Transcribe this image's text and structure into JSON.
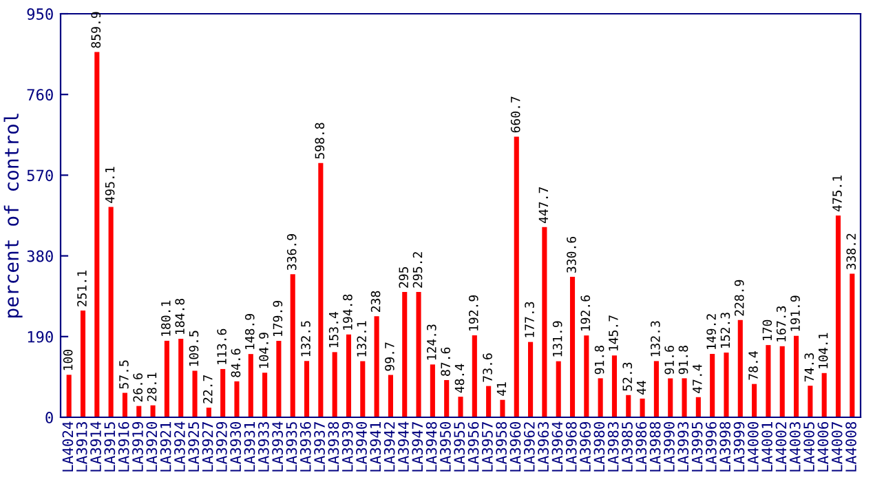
{
  "chart_data": {
    "type": "bar",
    "ylabel": "percent of control",
    "categories": [
      "LA4024",
      "LA3913",
      "LA3914",
      "LA3915",
      "LA3916",
      "LA3919",
      "LA3920",
      "LA3921",
      "LA3924",
      "LA3925",
      "LA3927",
      "LA3929",
      "LA3930",
      "LA3931",
      "LA3933",
      "LA3934",
      "LA3935",
      "LA3936",
      "LA3937",
      "LA3938",
      "LA3939",
      "LA3940",
      "LA3941",
      "LA3942",
      "LA3944",
      "LA3947",
      "LA3948",
      "LA3950",
      "LA3955",
      "LA3956",
      "LA3957",
      "LA3958",
      "LA3960",
      "LA3962",
      "LA3963",
      "LA3964",
      "LA3968",
      "LA3969",
      "LA3980",
      "LA3983",
      "LA3985",
      "LA3986",
      "LA3988",
      "LA3990",
      "LA3993",
      "LA3995",
      "LA3996",
      "LA3998",
      "LA3999",
      "LA4000",
      "LA4001",
      "LA4002",
      "LA4003",
      "LA4005",
      "LA4006",
      "LA4007",
      "LA4008"
    ],
    "values": [
      100,
      251.1,
      859.9,
      495.1,
      57.5,
      26.6,
      28.1,
      180.1,
      184.8,
      109.5,
      22.7,
      113.6,
      84.6,
      148.9,
      104.9,
      179.9,
      336.9,
      132.5,
      598.8,
      153.4,
      194.8,
      132.1,
      238,
      99.7,
      295,
      295.2,
      124.3,
      87.6,
      48.4,
      192.9,
      73.6,
      41,
      660.7,
      177.3,
      447.7,
      131.9,
      330.6,
      192.6,
      91.8,
      145.7,
      52.3,
      44,
      132.3,
      91.6,
      91.8,
      47.4,
      149.2,
      152.3,
      228.9,
      78.4,
      170,
      167.3,
      191.9,
      74.3,
      104.1,
      475.1,
      338.2
    ],
    "color": "#ff0000",
    "data_labels": true,
    "ylim": [
      0,
      950
    ],
    "yticks": [
      0,
      190,
      380,
      570,
      760,
      950
    ],
    "grid": false,
    "legend": false
  }
}
